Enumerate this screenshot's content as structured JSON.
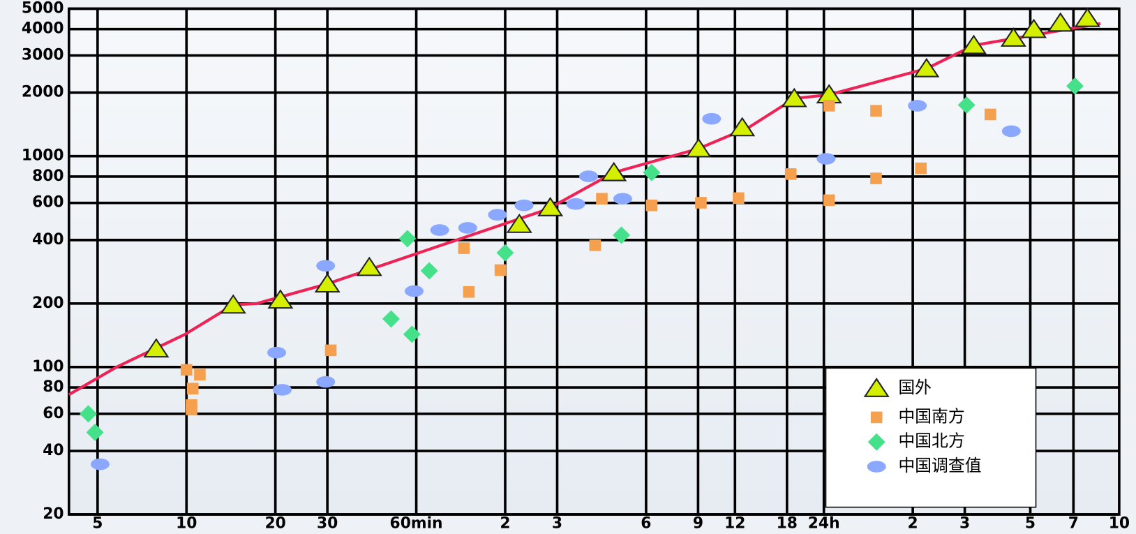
{
  "chart_data": {
    "type": "scatter",
    "xscale": "log",
    "yscale": "log",
    "grid": true,
    "legend": "lower right",
    "xlim": [
      4,
      14400
    ],
    "xticks": [
      5,
      10,
      20,
      30,
      {
        "value": 60,
        "label": "60min"
      },
      {
        "value": 120,
        "label": "2"
      },
      {
        "value": 180,
        "label": "3"
      },
      {
        "value": 360,
        "label": "6"
      },
      {
        "value": 540,
        "label": "9"
      },
      {
        "value": 720,
        "label": "12"
      },
      {
        "value": 1080,
        "label": "18"
      },
      {
        "value": 1440,
        "label": "24h"
      },
      {
        "value": 2880,
        "label": "2"
      },
      {
        "value": 4320,
        "label": "3"
      },
      {
        "value": 7200,
        "label": "5"
      },
      {
        "value": 10080,
        "label": "7"
      },
      {
        "value": 14400,
        "label": "10"
      }
    ],
    "ylim": [
      20,
      5000
    ],
    "yticks": [
      20,
      40,
      60,
      80,
      100,
      200,
      400,
      600,
      800,
      1000,
      2000,
      3000,
      4000,
      5000
    ],
    "series": [
      {
        "style": "line",
        "color": "#ee2255",
        "x": [
          4,
          5.8,
          9.9,
          14.4,
          17.3,
          30,
          167,
          280,
          542,
          800,
          1143,
          1500,
          3206,
          4632,
          12440
        ],
        "values": [
          74,
          100,
          143,
          197,
          200,
          248,
          560,
          836,
          1085,
          1365,
          1876,
          1955,
          2600,
          3350,
          4250
        ]
      },
      {
        "name": "国外",
        "style": "triangle",
        "color": "#d4f000",
        "x": [
          7.9,
          14.4,
          20.8,
          30,
          41.6,
          134,
          170.6,
          280,
          542,
          762,
          1143,
          1500,
          3206,
          4632,
          6313,
          7400,
          9110,
          11240
        ],
        "values": [
          122,
          197,
          208,
          248,
          297,
          475,
          570,
          836,
          1085,
          1365,
          1876,
          1955,
          2600,
          3350,
          3630,
          3990,
          4280,
          4500
        ]
      },
      {
        "name": "中国南方",
        "style": "square",
        "color": "#f5a04f",
        "x": [
          10,
          11.1,
          10.5,
          10.4,
          10.4,
          30.8,
          87,
          90.4,
          115.6,
          242,
          255,
          376,
          552,
          740,
          1112,
          1500,
          1500,
          2163,
          2163,
          3068,
          5275
        ],
        "values": [
          97,
          92,
          79,
          66,
          63,
          120,
          366,
          227,
          288,
          378,
          628,
          584,
          601,
          632,
          822,
          618,
          1734,
          784,
          1640,
          875,
          1576
        ]
      },
      {
        "name": "中国北方",
        "style": "diamond",
        "color": "#44e08a",
        "x": [
          4.65,
          4.9,
          49.3,
          56,
          58,
          66.4,
          120,
          297,
          376,
          4380,
          10200
        ],
        "values": [
          60,
          49,
          169,
          406,
          143,
          286,
          348,
          422,
          836,
          1747,
          2150
        ]
      },
      {
        "name": "中国调查值",
        "style": "ellipse",
        "color": "#8aa8ff",
        "x": [
          5.1,
          20.2,
          21.1,
          29.6,
          29.6,
          59,
          72,
          89.6,
          113,
          139,
          208,
          230,
          300,
          600,
          1465,
          2985,
          6210
        ],
        "values": [
          34.6,
          117,
          78,
          302,
          85,
          229,
          446,
          457,
          527,
          584,
          593,
          802,
          628,
          1503,
          971,
          1734,
          1313
        ]
      }
    ]
  }
}
